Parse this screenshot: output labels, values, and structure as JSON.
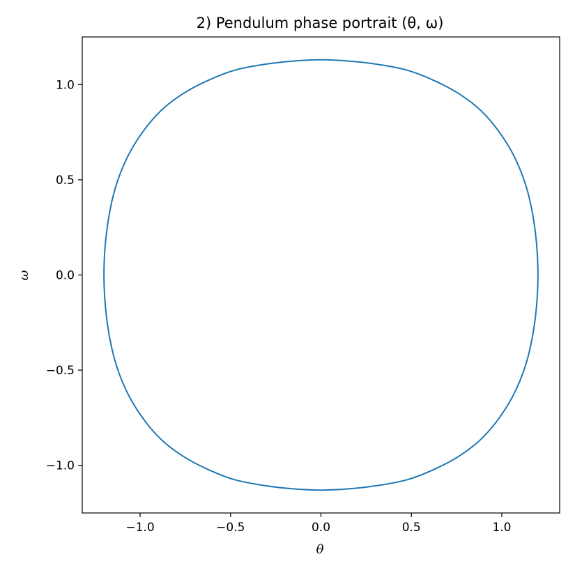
{
  "chart_data": {
    "type": "line",
    "title": "2) Pendulum phase portrait (θ, ω)",
    "xlabel": "θ",
    "ylabel": "ω",
    "xlim": [
      -1.32,
      1.32
    ],
    "ylim": [
      -1.25,
      1.25
    ],
    "grid": false,
    "legend": "none",
    "series_color": "#1f77b4",
    "x_ticks": [
      {
        "value": -1.0,
        "label": "−1.0"
      },
      {
        "value": -0.5,
        "label": "−0.5"
      },
      {
        "value": 0.0,
        "label": "0.0"
      },
      {
        "value": 0.5,
        "label": "0.5"
      },
      {
        "value": 1.0,
        "label": "1.0"
      }
    ],
    "y_ticks": [
      {
        "value": -1.0,
        "label": "−1.0"
      },
      {
        "value": -0.5,
        "label": "−0.5"
      },
      {
        "value": 0.0,
        "label": "0.0"
      },
      {
        "value": 0.5,
        "label": "0.5"
      },
      {
        "value": 1.0,
        "label": "1.0"
      }
    ],
    "series": [
      {
        "x": [
          1.2,
          1.186,
          1.145,
          1.08,
          0.994,
          0.888,
          0.766,
          0.628,
          0.478,
          0.32,
          0.158,
          0.0,
          -0.158,
          -0.32,
          -0.478,
          -0.628,
          -0.766,
          -0.888,
          -0.994,
          -1.08,
          -1.145,
          -1.186,
          -1.2,
          -1.186,
          -1.145,
          -1.08,
          -0.994,
          -0.888,
          -0.766,
          -0.628,
          -0.478,
          -0.32,
          -0.158,
          0.0,
          0.158,
          0.32,
          0.478,
          0.628,
          0.766,
          0.888,
          0.994,
          1.08,
          1.145,
          1.186,
          1.2
        ],
        "y": [
          0.0,
          0.22,
          0.43,
          0.6,
          0.74,
          0.86,
          0.95,
          1.02,
          1.075,
          1.105,
          1.123,
          1.13,
          1.123,
          1.105,
          1.075,
          1.02,
          0.95,
          0.86,
          0.74,
          0.6,
          0.43,
          0.22,
          0.0,
          -0.22,
          -0.43,
          -0.6,
          -0.74,
          -0.86,
          -0.95,
          -1.02,
          -1.075,
          -1.105,
          -1.123,
          -1.13,
          -1.123,
          -1.105,
          -1.075,
          -1.02,
          -0.95,
          -0.86,
          -0.74,
          -0.6,
          -0.43,
          -0.22,
          0.0
        ]
      }
    ]
  }
}
